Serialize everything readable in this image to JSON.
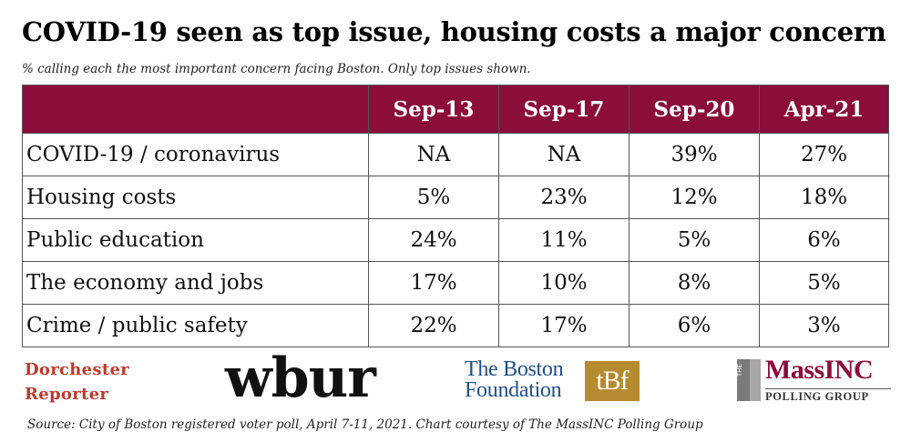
{
  "title": "COVID-19 seen as top issue, housing costs a major concern",
  "subtitle": "% calling each the most important concern facing Boston. Only top issues shown.",
  "colors": {
    "header_bg": "#8b0d3a",
    "header_text": "#ffffff"
  },
  "chart_data": {
    "type": "table",
    "columns": [
      "Sep-13",
      "Sep-17",
      "Sep-20",
      "Apr-21"
    ],
    "rows": [
      {
        "label": "COVID-19 / coronavirus",
        "values": [
          "NA",
          "NA",
          "39%",
          "27%"
        ]
      },
      {
        "label": "Housing costs",
        "values": [
          "5%",
          "23%",
          "12%",
          "18%"
        ]
      },
      {
        "label": "Public education",
        "values": [
          "24%",
          "11%",
          "5%",
          "6%"
        ]
      },
      {
        "label": "The economy and jobs",
        "values": [
          "17%",
          "10%",
          "8%",
          "5%"
        ]
      },
      {
        "label": "Crime / public safety",
        "values": [
          "22%",
          "17%",
          "6%",
          "3%"
        ]
      }
    ]
  },
  "logos": {
    "dorchester_line1": "Dorchester",
    "dorchester_line2": "Reporter",
    "wbur": "wbur",
    "tbf_line1": "The Boston",
    "tbf_line2": "Foundation",
    "tbf_mark": "tBf",
    "massinc_the": "THE",
    "massinc_name": "MassINC",
    "massinc_sub": "POLLING GROUP"
  },
  "source": "Source: City of Boston registered voter poll, April 7-11, 2021. Chart courtesy of The MassINC Polling Group"
}
